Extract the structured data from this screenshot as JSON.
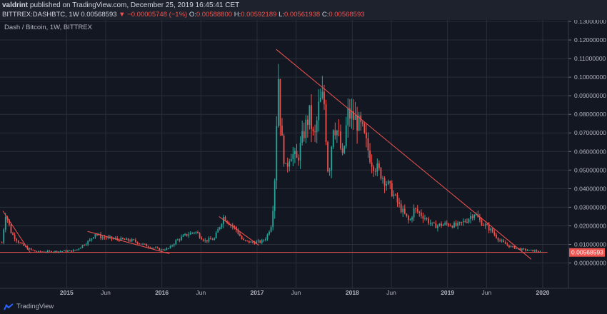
{
  "header": {
    "author": "valdrint",
    "published": "published on TradingView.com, December 25, 2019 16:45:41 CET",
    "symbol": "BITTREX:DASHBTC, 1W",
    "last": "0.00568593",
    "change": "▼ −0.00005748 (−1%)",
    "o_label": "O:",
    "o_value": "0.00588800",
    "h_label": "H:",
    "h_value": "0.00592189",
    "l_label": "L:",
    "l_value": "0.00561938",
    "c_label": "C:",
    "c_value": "0.00568593"
  },
  "chart_label": "Dash / Bitcoin, 1W, BITTREX",
  "footer": {
    "brand": "TradingView"
  },
  "colors": {
    "up": "#26a69a",
    "down": "#ef5350",
    "trend": "#ef5350",
    "grid": "#2a2e39",
    "bg": "#131722"
  },
  "chart_data": {
    "type": "candlestick",
    "title": "Dash / Bitcoin, 1W, BITTREX",
    "ylim": [
      -0.005,
      0.13
    ],
    "y_ticks": [
      "0.13000000",
      "0.12000000",
      "0.11000000",
      "0.10000000",
      "0.09000000",
      "0.08000000",
      "0.07000000",
      "0.06000000",
      "0.05000000",
      "0.04000000",
      "0.03000000",
      "0.02000000",
      "0.01000000",
      "0.00000000"
    ],
    "y_tick_values": [
      0.13,
      0.12,
      0.11,
      0.1,
      0.09,
      0.08,
      0.07,
      0.06,
      0.05,
      0.04,
      0.03,
      0.02,
      0.01,
      0.0
    ],
    "x_ticks": [
      {
        "label": "2015",
        "t": 2015.0,
        "bold": true
      },
      {
        "label": "Jun",
        "t": 2015.41,
        "bold": false
      },
      {
        "label": "2016",
        "t": 2016.0,
        "bold": true
      },
      {
        "label": "Jun",
        "t": 2016.41,
        "bold": false
      },
      {
        "label": "2017",
        "t": 2017.0,
        "bold": true
      },
      {
        "label": "Jun",
        "t": 2017.41,
        "bold": false
      },
      {
        "label": "2018",
        "t": 2018.0,
        "bold": true
      },
      {
        "label": "Jun",
        "t": 2018.41,
        "bold": false
      },
      {
        "label": "2019",
        "t": 2019.0,
        "bold": true
      },
      {
        "label": "Jun",
        "t": 2019.41,
        "bold": false
      },
      {
        "label": "2020",
        "t": 2020.0,
        "bold": true
      }
    ],
    "xlim": [
      2014.3,
      2020.27
    ],
    "last_price": 0.00568593,
    "last_price_label": "0.00568593",
    "keypoints": [
      [
        2014.32,
        0.011
      ],
      [
        2014.36,
        0.027
      ],
      [
        2014.42,
        0.016
      ],
      [
        2014.5,
        0.011
      ],
      [
        2014.58,
        0.008
      ],
      [
        2014.68,
        0.006
      ],
      [
        2014.85,
        0.0062
      ],
      [
        2015.05,
        0.0065
      ],
      [
        2015.1,
        0.007
      ],
      [
        2015.18,
        0.01
      ],
      [
        2015.24,
        0.012
      ],
      [
        2015.3,
        0.016
      ],
      [
        2015.36,
        0.014
      ],
      [
        2015.5,
        0.013
      ],
      [
        2015.7,
        0.012
      ],
      [
        2015.85,
        0.009
      ],
      [
        2016.0,
        0.007
      ],
      [
        2016.08,
        0.008
      ],
      [
        2016.15,
        0.012
      ],
      [
        2016.25,
        0.015
      ],
      [
        2016.35,
        0.017
      ],
      [
        2016.45,
        0.012
      ],
      [
        2016.55,
        0.013
      ],
      [
        2016.65,
        0.025
      ],
      [
        2016.7,
        0.022
      ],
      [
        2016.78,
        0.018
      ],
      [
        2016.85,
        0.012
      ],
      [
        2016.95,
        0.011
      ],
      [
        2017.05,
        0.0115
      ],
      [
        2017.1,
        0.014
      ],
      [
        2017.15,
        0.021
      ],
      [
        2017.18,
        0.038
      ],
      [
        2017.2,
        0.068
      ],
      [
        2017.22,
        0.105
      ],
      [
        2017.25,
        0.07
      ],
      [
        2017.3,
        0.05
      ],
      [
        2017.35,
        0.06
      ],
      [
        2017.42,
        0.055
      ],
      [
        2017.5,
        0.072
      ],
      [
        2017.55,
        0.08
      ],
      [
        2017.6,
        0.065
      ],
      [
        2017.65,
        0.085
      ],
      [
        2017.7,
        0.09
      ],
      [
        2017.75,
        0.045
      ],
      [
        2017.8,
        0.075
      ],
      [
        2017.85,
        0.07
      ],
      [
        2017.9,
        0.055
      ],
      [
        2017.95,
        0.08
      ],
      [
        2018.02,
        0.078
      ],
      [
        2018.1,
        0.072
      ],
      [
        2018.2,
        0.055
      ],
      [
        2018.3,
        0.048
      ],
      [
        2018.4,
        0.04
      ],
      [
        2018.5,
        0.03
      ],
      [
        2018.6,
        0.022
      ],
      [
        2018.65,
        0.029
      ],
      [
        2018.75,
        0.025
      ],
      [
        2018.85,
        0.02
      ],
      [
        2019.0,
        0.021
      ],
      [
        2019.1,
        0.02
      ],
      [
        2019.2,
        0.023
      ],
      [
        2019.28,
        0.027
      ],
      [
        2019.35,
        0.022
      ],
      [
        2019.45,
        0.018
      ],
      [
        2019.55,
        0.012
      ],
      [
        2019.65,
        0.009
      ],
      [
        2019.75,
        0.0075
      ],
      [
        2019.85,
        0.0068
      ],
      [
        2019.93,
        0.0065
      ],
      [
        2019.98,
        0.0057
      ]
    ],
    "trendlines": [
      {
        "name": "2014-downtrend",
        "from": [
          2014.33,
          0.028
        ],
        "to": [
          2014.62,
          0.0055
        ]
      },
      {
        "name": "2015-downtrend",
        "from": [
          2015.22,
          0.017
        ],
        "to": [
          2016.08,
          0.005
        ]
      },
      {
        "name": "2016-downtrend",
        "from": [
          2016.6,
          0.025
        ],
        "to": [
          2017.02,
          0.0095
        ]
      },
      {
        "name": "major-downtrend",
        "from": [
          2017.2,
          0.115
        ],
        "to": [
          2019.88,
          0.002
        ]
      },
      {
        "name": "support-line",
        "from": [
          2014.3,
          0.0057
        ],
        "to": [
          2020.05,
          0.0057
        ]
      }
    ]
  }
}
